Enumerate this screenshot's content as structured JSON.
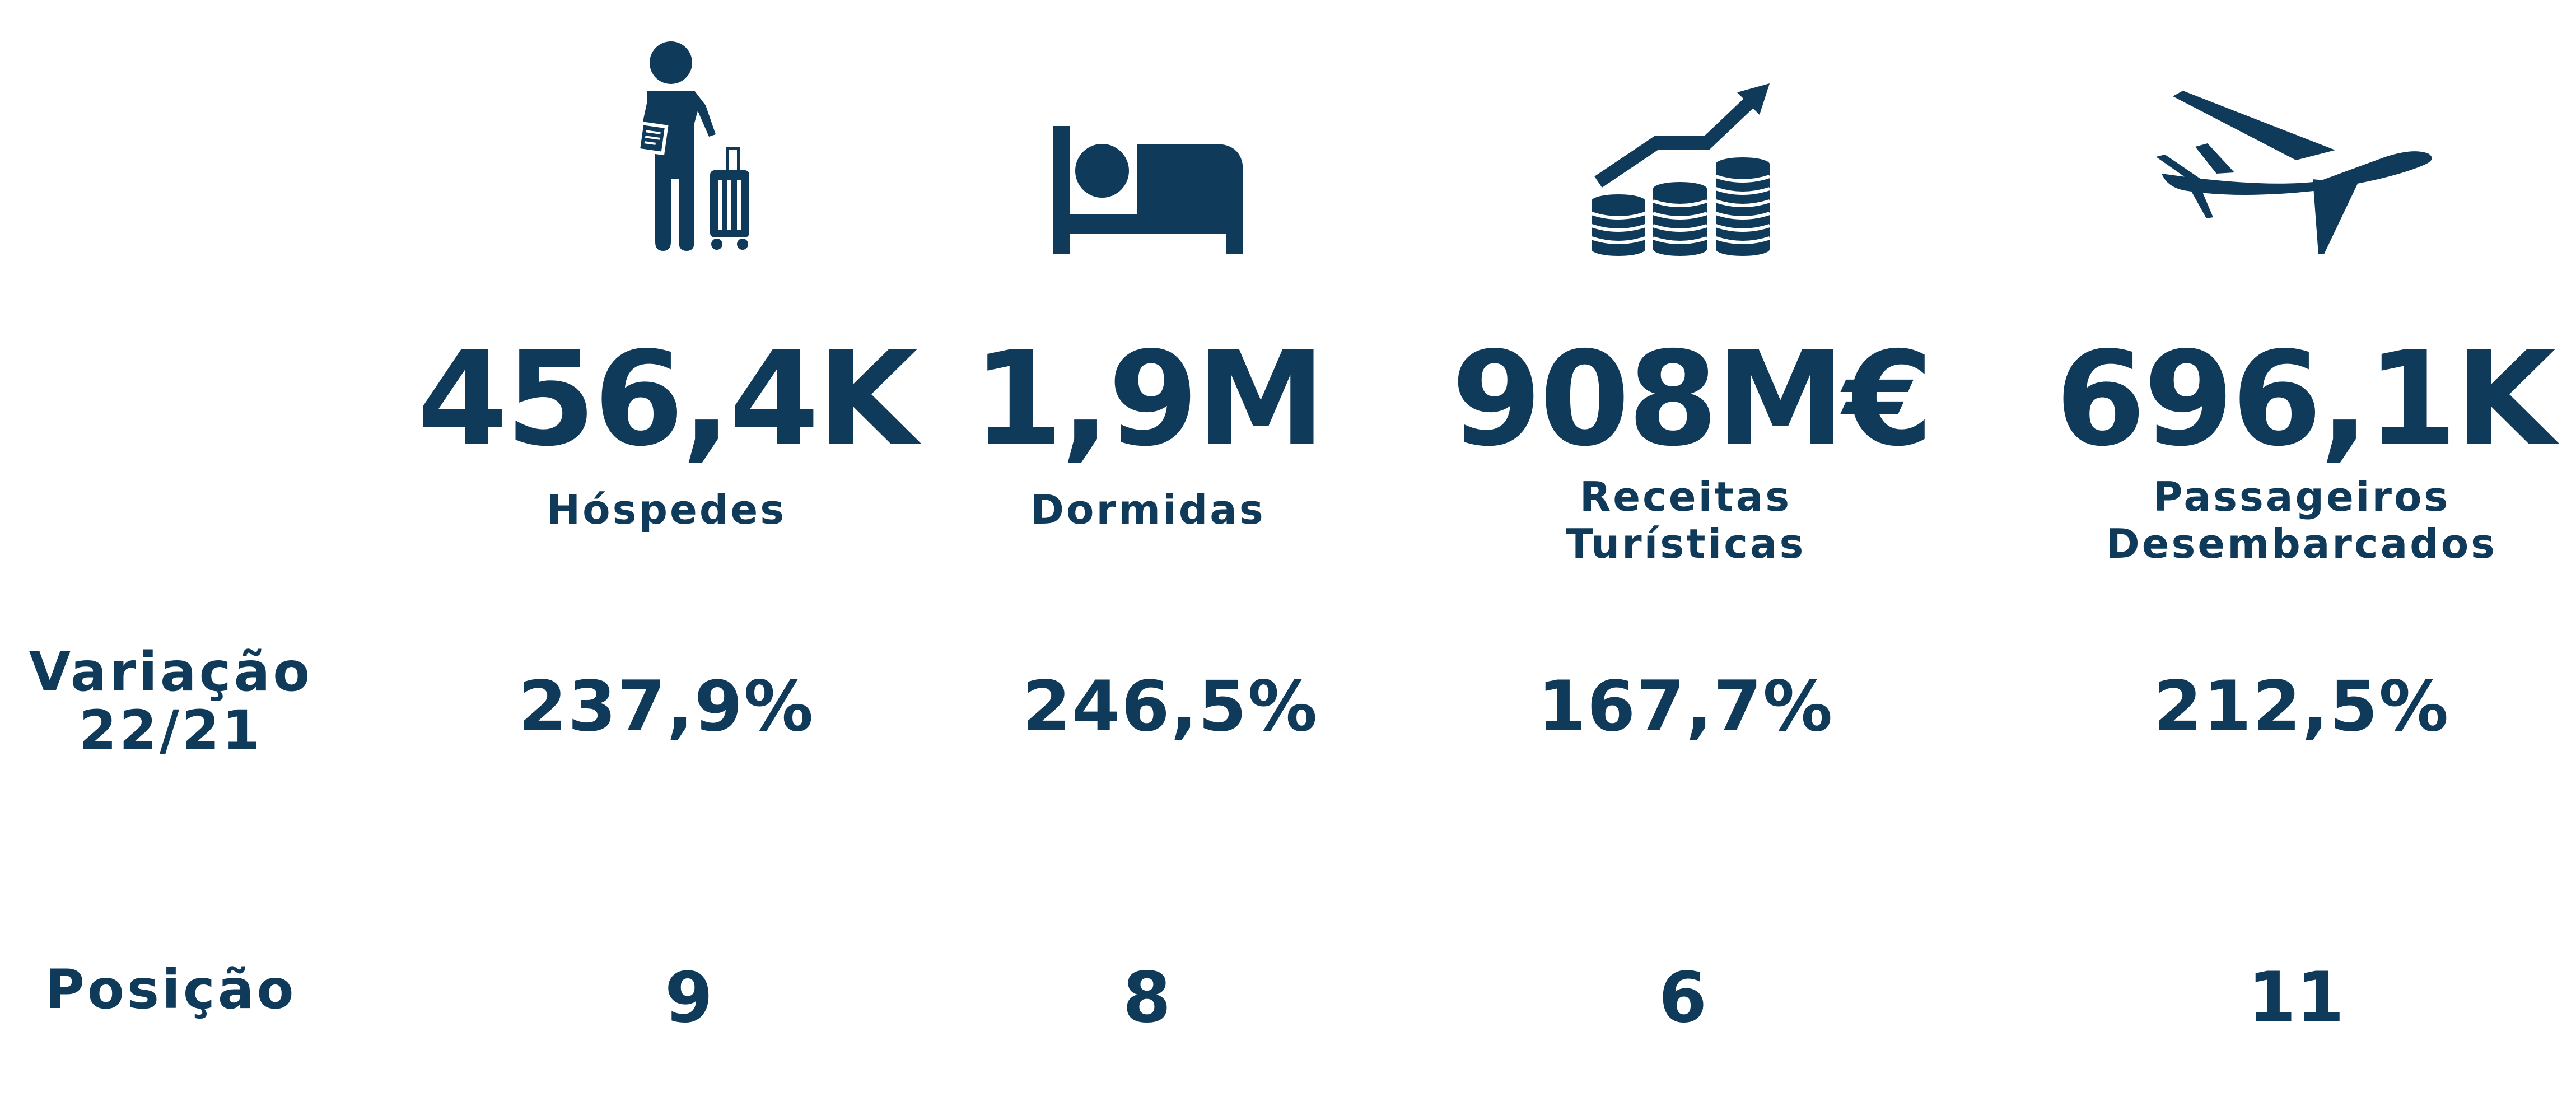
{
  "colors": {
    "primary": "#0f3a5a",
    "background": "#ffffff"
  },
  "metrics": [
    {
      "icon": "traveler-with-luggage-icon",
      "value": "456,4K",
      "label": "Hóspedes",
      "variation": "237,9%",
      "position": "9"
    },
    {
      "icon": "bed-icon",
      "value": "1,9M",
      "label": "Dormidas",
      "variation": "246,5%",
      "position": "8"
    },
    {
      "icon": "coins-growth-icon",
      "value": "908M€",
      "label_line1": "Receitas",
      "label_line2": "Turísticas",
      "variation": "167,7%",
      "position": "6"
    },
    {
      "icon": "airplane-icon",
      "value": "696,1K",
      "label_line1": "Passageiros",
      "label_line2": "Desembarcados",
      "variation": "212,5%",
      "position": "11"
    }
  ],
  "rows": {
    "variation_line1": "Variação",
    "variation_line2": "22/21",
    "position": "Posição"
  }
}
